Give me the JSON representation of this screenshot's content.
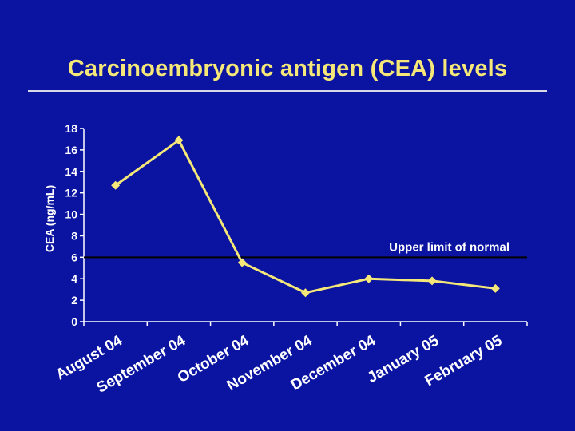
{
  "chart_data": {
    "type": "line",
    "title": "Carcinoembryonic antigen (CEA) levels",
    "xlabel": "",
    "ylabel": "CEA (ng/mL)",
    "categories": [
      "August 04",
      "September 04",
      "October 04",
      "November 04",
      "December 04",
      "January 05",
      "February 05"
    ],
    "values": [
      12.7,
      16.9,
      5.5,
      2.7,
      4.0,
      3.8,
      3.1
    ],
    "ylim": [
      0,
      18
    ],
    "yticks": [
      0,
      2,
      4,
      6,
      8,
      10,
      12,
      14,
      16,
      18
    ],
    "reference_line": {
      "value": 6,
      "label": "Upper limit of normal"
    },
    "grid": false,
    "legend": "none"
  },
  "colors": {
    "background": "#0a14a0",
    "title": "#f5e878",
    "series": "#f5e878",
    "axis": "#ffffff",
    "reference_line": "#000000"
  }
}
